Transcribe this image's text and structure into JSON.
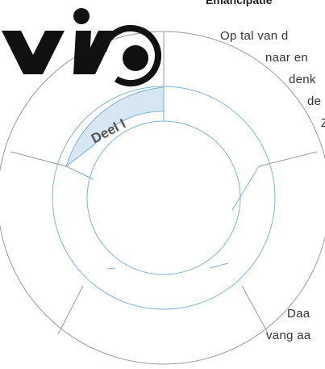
{
  "header": {
    "title": "Emancipatie"
  },
  "logo": {
    "alt_text": "VIVO",
    "icon": "vivo-logo-icon"
  },
  "wheel": {
    "active_segment_label": "Deel I",
    "segment_count": 6,
    "colors": {
      "outline": "#999999",
      "inner": "#7fb2d3",
      "active_fill": "#d6e6f2",
      "label": "#555555"
    }
  },
  "body_text": {
    "lines": [
      "Op tal van d",
      "naar en",
      "denk",
      "de",
      "Z",
      "Daa",
      "vang aa"
    ]
  }
}
